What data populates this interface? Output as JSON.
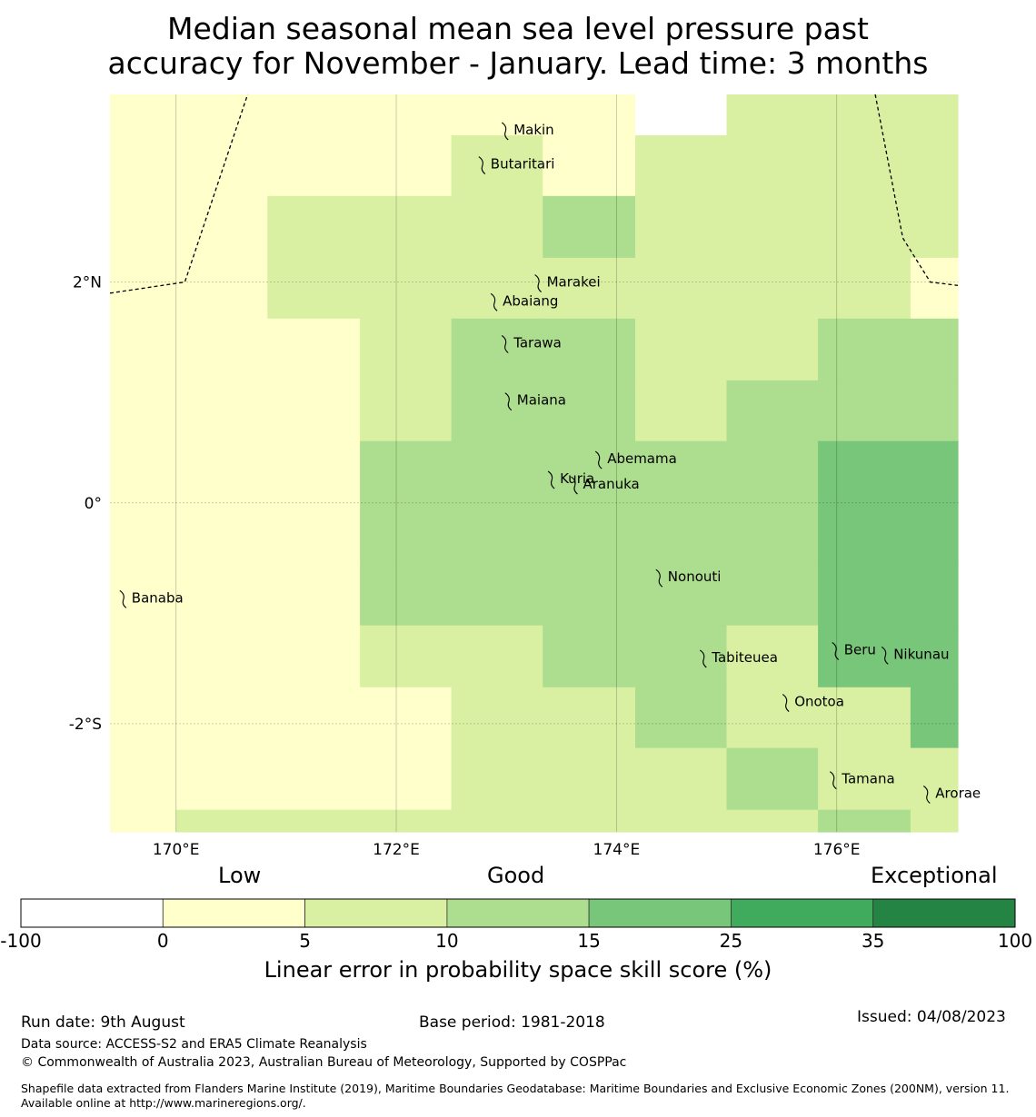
{
  "title": {
    "line1": "Median seasonal mean sea level pressure past",
    "line2": "accuracy for November - January. Lead time: 3 months"
  },
  "map": {
    "lon_range": [
      169.4,
      177.1
    ],
    "lat_range": [
      -2.98,
      3.7
    ],
    "x_ticks": [
      {
        "value": 170,
        "label": "170°E"
      },
      {
        "value": 172,
        "label": "172°E"
      },
      {
        "value": 174,
        "label": "174°E"
      },
      {
        "value": 176,
        "label": "176°E"
      }
    ],
    "y_ticks": [
      {
        "value": 2,
        "label": "2°N"
      },
      {
        "value": 0,
        "label": "0°"
      },
      {
        "value": -2,
        "label": "-2°S"
      }
    ],
    "grid_lon_edges": [
      169.4,
      170.0,
      170.83,
      171.67,
      172.5,
      173.33,
      174.17,
      175.0,
      175.83,
      176.67,
      177.1
    ],
    "grid_lat_edges": [
      3.7,
      3.33,
      2.78,
      2.22,
      1.67,
      1.11,
      0.56,
      0.0,
      -0.56,
      -1.11,
      -1.67,
      -2.22,
      -2.78,
      -2.98
    ],
    "grid_classes": [
      [
        1,
        1,
        1,
        1,
        1,
        1,
        0,
        2,
        2,
        2
      ],
      [
        1,
        1,
        1,
        1,
        2,
        1,
        2,
        2,
        2,
        2
      ],
      [
        1,
        1,
        2,
        2,
        2,
        3,
        2,
        2,
        2,
        2
      ],
      [
        1,
        1,
        2,
        2,
        2,
        2,
        2,
        2,
        2,
        1
      ],
      [
        1,
        1,
        1,
        2,
        3,
        3,
        2,
        2,
        3,
        3
      ],
      [
        1,
        1,
        1,
        2,
        3,
        3,
        2,
        3,
        3,
        3
      ],
      [
        1,
        1,
        1,
        3,
        3,
        3,
        3,
        3,
        4,
        4
      ],
      [
        1,
        1,
        1,
        3,
        3,
        3,
        3,
        3,
        4,
        4
      ],
      [
        1,
        1,
        1,
        3,
        3,
        3,
        3,
        3,
        4,
        4
      ],
      [
        1,
        1,
        1,
        2,
        2,
        3,
        3,
        2,
        4,
        4
      ],
      [
        1,
        1,
        1,
        1,
        2,
        2,
        3,
        2,
        2,
        4
      ],
      [
        1,
        1,
        1,
        1,
        2,
        2,
        2,
        3,
        2,
        2
      ],
      [
        1,
        2,
        2,
        2,
        2,
        2,
        2,
        2,
        3,
        2
      ]
    ],
    "islands": [
      {
        "name": "Makin",
        "lon": 173.0,
        "lat": 3.38
      },
      {
        "name": "Butaritari",
        "lon": 172.79,
        "lat": 3.07
      },
      {
        "name": "Marakei",
        "lon": 173.3,
        "lat": 2.0
      },
      {
        "name": "Abaiang",
        "lon": 172.9,
        "lat": 1.83
      },
      {
        "name": "Tarawa",
        "lon": 173.0,
        "lat": 1.45
      },
      {
        "name": "Maiana",
        "lon": 173.03,
        "lat": 0.93
      },
      {
        "name": "Abemama",
        "lon": 173.85,
        "lat": 0.4
      },
      {
        "name": "Kuria",
        "lon": 173.42,
        "lat": 0.22
      },
      {
        "name": "Aranuka",
        "lon": 173.63,
        "lat": 0.17
      },
      {
        "name": "Nonouti",
        "lon": 174.4,
        "lat": -0.67
      },
      {
        "name": "Banaba",
        "lon": 169.53,
        "lat": -0.86
      },
      {
        "name": "Tabiteuea",
        "lon": 174.8,
        "lat": -1.4
      },
      {
        "name": "Beru",
        "lon": 176.0,
        "lat": -1.33
      },
      {
        "name": "Nikunau",
        "lon": 176.45,
        "lat": -1.37
      },
      {
        "name": "Onotoa",
        "lon": 175.55,
        "lat": -1.8
      },
      {
        "name": "Tamana",
        "lon": 175.98,
        "lat": -2.5
      },
      {
        "name": "Arorae",
        "lon": 176.83,
        "lat": -2.63
      }
    ],
    "boundaries": [
      [
        [
          169.4,
          1.9
        ],
        [
          170.08,
          2.0
        ],
        [
          170.65,
          3.7
        ]
      ],
      [
        [
          176.35,
          3.7
        ],
        [
          176.6,
          2.4
        ],
        [
          176.85,
          2.0
        ],
        [
          177.1,
          1.97
        ]
      ]
    ]
  },
  "colorbar": {
    "descriptors": {
      "low": "Low",
      "good": "Good",
      "exceptional": "Exceptional"
    },
    "bins": [
      {
        "from": -100,
        "to": 0,
        "color": "#ffffff"
      },
      {
        "from": 0,
        "to": 5,
        "color": "#ffffcc"
      },
      {
        "from": 5,
        "to": 10,
        "color": "#d9f0a3"
      },
      {
        "from": 10,
        "to": 15,
        "color": "#addd8e"
      },
      {
        "from": 15,
        "to": 25,
        "color": "#78c679"
      },
      {
        "from": 25,
        "to": 35,
        "color": "#41ab5d"
      },
      {
        "from": 35,
        "to": 100,
        "color": "#238443"
      }
    ],
    "ticks": [
      "-100",
      "0",
      "5",
      "10",
      "15",
      "25",
      "35",
      "100"
    ],
    "label": "Linear error in probability space skill score (%)"
  },
  "footer": {
    "run_date": "Run date: 9th August",
    "base_period": "Base period: 1981-2018",
    "issued": "Issued: 04/08/2023",
    "data_source": "Data source: ACCESS-S2 and ERA5 Climate Reanalysis",
    "copyright": "© Commonwealth of Australia 2023, Australian Bureau of Meteorology, Supported by COSPPac",
    "shapefile": "Shapefile data extracted from Flanders Marine Institute (2019), Maritime Boundaries Geodatabase: Maritime Boundaries and Exclusive Economic Zones (200NM), version 11. Available online at http://www.marineregions.org/."
  }
}
